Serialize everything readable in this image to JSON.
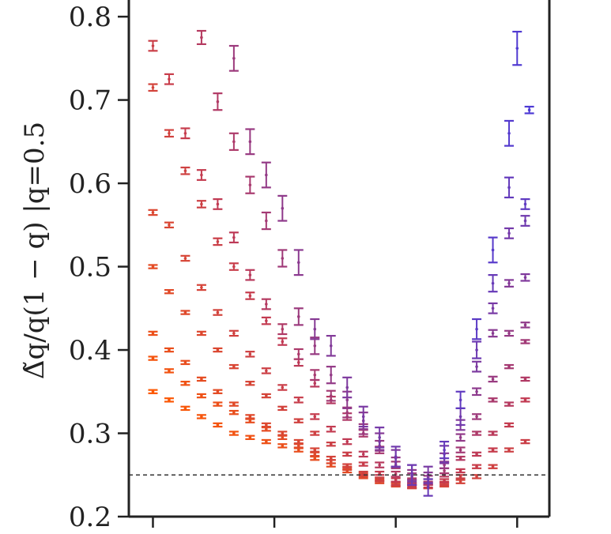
{
  "chart_data": {
    "type": "scatter",
    "title": "",
    "ylabel": "Δ̃q/q(1 − q) |q=0.5",
    "xlabel": "",
    "ylim": [
      0.2,
      0.82
    ],
    "xlim": [
      0,
      1
    ],
    "yticks": [
      0.2,
      0.3,
      0.4,
      0.5,
      0.6,
      0.7,
      0.8
    ],
    "ytick_labels": [
      "0.2",
      "0.3",
      "0.4",
      "0.5",
      "0.6",
      "0.7",
      "0.8"
    ],
    "xticks": [
      0.04,
      0.34,
      0.64,
      0.94
    ],
    "xtick_labels": [
      "",
      "",
      "",
      ""
    ],
    "reference_line": {
      "y": 0.25,
      "style": "dashed",
      "color": "#333333"
    },
    "grid": false,
    "legend": "none",
    "color_gradient": {
      "start": "#ff5a00",
      "mid": "#c23a52",
      "end": "#4a3ad8"
    },
    "series": [
      {
        "values": [
          [
            0.04,
            0.35,
            0.002
          ],
          [
            0.08,
            0.34,
            0.002
          ],
          [
            0.12,
            0.33,
            0.002
          ],
          [
            0.16,
            0.32,
            0.002
          ],
          [
            0.2,
            0.31,
            0.002
          ],
          [
            0.24,
            0.3,
            0.002
          ],
          [
            0.28,
            0.295,
            0.002
          ],
          [
            0.32,
            0.29,
            0.002
          ],
          [
            0.36,
            0.285,
            0.002
          ],
          [
            0.4,
            0.28,
            0.002
          ],
          [
            0.44,
            0.27,
            0.002
          ],
          [
            0.48,
            0.262,
            0.002
          ],
          [
            0.52,
            0.255,
            0.002
          ],
          [
            0.56,
            0.248,
            0.002
          ],
          [
            0.6,
            0.242,
            0.002
          ],
          [
            0.64,
            0.238,
            0.002
          ],
          [
            0.68,
            0.236,
            0.002
          ],
          [
            0.72,
            0.236,
            0.002
          ],
          [
            0.76,
            0.238,
            0.002
          ],
          [
            0.8,
            0.242,
            0.002
          ],
          [
            0.84,
            0.248,
            0.002
          ],
          [
            0.88,
            0.26,
            0.002
          ],
          [
            0.92,
            0.28,
            0.002
          ],
          [
            0.96,
            0.29,
            0.002
          ]
        ]
      },
      {
        "values": [
          [
            0.04,
            0.39,
            0.002
          ],
          [
            0.08,
            0.375,
            0.002
          ],
          [
            0.12,
            0.36,
            0.002
          ],
          [
            0.16,
            0.345,
            0.002
          ],
          [
            0.2,
            0.335,
            0.002
          ],
          [
            0.24,
            0.325,
            0.002
          ],
          [
            0.28,
            0.315,
            0.002
          ],
          [
            0.32,
            0.305,
            0.002
          ],
          [
            0.36,
            0.295,
            0.002
          ],
          [
            0.4,
            0.285,
            0.002
          ],
          [
            0.44,
            0.275,
            0.002
          ],
          [
            0.48,
            0.266,
            0.002
          ],
          [
            0.52,
            0.258,
            0.002
          ],
          [
            0.56,
            0.25,
            0.002
          ],
          [
            0.6,
            0.244,
            0.002
          ],
          [
            0.64,
            0.239,
            0.002
          ],
          [
            0.68,
            0.236,
            0.002
          ],
          [
            0.72,
            0.236,
            0.002
          ],
          [
            0.76,
            0.24,
            0.002
          ],
          [
            0.8,
            0.248,
            0.002
          ],
          [
            0.84,
            0.26,
            0.002
          ],
          [
            0.88,
            0.28,
            0.002
          ],
          [
            0.92,
            0.31,
            0.002
          ],
          [
            0.96,
            0.34,
            0.002
          ]
        ]
      },
      {
        "values": [
          [
            0.04,
            0.42,
            0.002
          ],
          [
            0.08,
            0.4,
            0.002
          ],
          [
            0.12,
            0.385,
            0.002
          ],
          [
            0.16,
            0.365,
            0.002
          ],
          [
            0.2,
            0.35,
            0.002
          ],
          [
            0.24,
            0.335,
            0.002
          ],
          [
            0.28,
            0.32,
            0.002
          ],
          [
            0.32,
            0.31,
            0.002
          ],
          [
            0.36,
            0.3,
            0.002
          ],
          [
            0.4,
            0.29,
            0.002
          ],
          [
            0.44,
            0.28,
            0.002
          ],
          [
            0.48,
            0.27,
            0.002
          ],
          [
            0.52,
            0.261,
            0.002
          ],
          [
            0.56,
            0.252,
            0.002
          ],
          [
            0.6,
            0.245,
            0.002
          ],
          [
            0.64,
            0.24,
            0.002
          ],
          [
            0.68,
            0.237,
            0.002
          ],
          [
            0.72,
            0.237,
            0.002
          ],
          [
            0.76,
            0.243,
            0.002
          ],
          [
            0.8,
            0.255,
            0.002
          ],
          [
            0.84,
            0.275,
            0.002
          ],
          [
            0.88,
            0.3,
            0.002
          ],
          [
            0.92,
            0.335,
            0.002
          ],
          [
            0.96,
            0.365,
            0.002
          ]
        ]
      },
      {
        "values": [
          [
            0.04,
            0.5,
            0.002
          ],
          [
            0.08,
            0.47,
            0.002
          ],
          [
            0.12,
            0.445,
            0.002
          ],
          [
            0.16,
            0.42,
            0.002
          ],
          [
            0.2,
            0.4,
            0.002
          ],
          [
            0.24,
            0.38,
            0.002
          ],
          [
            0.28,
            0.36,
            0.002
          ],
          [
            0.32,
            0.345,
            0.002
          ],
          [
            0.36,
            0.33,
            0.002
          ],
          [
            0.4,
            0.315,
            0.002
          ],
          [
            0.44,
            0.3,
            0.002
          ],
          [
            0.48,
            0.287,
            0.002
          ],
          [
            0.52,
            0.275,
            0.002
          ],
          [
            0.56,
            0.263,
            0.002
          ],
          [
            0.6,
            0.252,
            0.002
          ],
          [
            0.64,
            0.244,
            0.002
          ],
          [
            0.68,
            0.239,
            0.002
          ],
          [
            0.72,
            0.24,
            0.002
          ],
          [
            0.76,
            0.25,
            0.002
          ],
          [
            0.8,
            0.27,
            0.002
          ],
          [
            0.84,
            0.3,
            0.002
          ],
          [
            0.88,
            0.34,
            0.002
          ],
          [
            0.92,
            0.38,
            0.002
          ],
          [
            0.96,
            0.41,
            0.002
          ]
        ]
      },
      {
        "values": [
          [
            0.04,
            0.565,
            0.003
          ],
          [
            0.08,
            0.55,
            0.003
          ],
          [
            0.12,
            0.51,
            0.003
          ],
          [
            0.16,
            0.475,
            0.003
          ],
          [
            0.2,
            0.445,
            0.003
          ],
          [
            0.24,
            0.42,
            0.003
          ],
          [
            0.28,
            0.395,
            0.003
          ],
          [
            0.32,
            0.375,
            0.003
          ],
          [
            0.36,
            0.355,
            0.003
          ],
          [
            0.4,
            0.34,
            0.003
          ],
          [
            0.44,
            0.32,
            0.003
          ],
          [
            0.48,
            0.305,
            0.003
          ],
          [
            0.52,
            0.29,
            0.003
          ],
          [
            0.56,
            0.275,
            0.003
          ],
          [
            0.6,
            0.262,
            0.003
          ],
          [
            0.64,
            0.251,
            0.003
          ],
          [
            0.68,
            0.243,
            0.003
          ],
          [
            0.72,
            0.242,
            0.003
          ],
          [
            0.76,
            0.255,
            0.003
          ],
          [
            0.8,
            0.28,
            0.003
          ],
          [
            0.84,
            0.32,
            0.003
          ],
          [
            0.88,
            0.365,
            0.003
          ],
          [
            0.92,
            0.42,
            0.003
          ],
          [
            0.96,
            0.43,
            0.003
          ]
        ]
      },
      {
        "values": [
          [
            0.04,
            0.715,
            0.004
          ],
          [
            0.08,
            0.66,
            0.004
          ],
          [
            0.12,
            0.615,
            0.004
          ],
          [
            0.16,
            0.575,
            0.004
          ],
          [
            0.2,
            0.53,
            0.004
          ],
          [
            0.24,
            0.5,
            0.004
          ],
          [
            0.28,
            0.465,
            0.004
          ],
          [
            0.32,
            0.435,
            0.004
          ],
          [
            0.36,
            0.41,
            0.004
          ],
          [
            0.4,
            0.385,
            0.004
          ],
          [
            0.44,
            0.36,
            0.004
          ],
          [
            0.48,
            0.34,
            0.004
          ],
          [
            0.52,
            0.32,
            0.004
          ],
          [
            0.56,
            0.3,
            0.004
          ],
          [
            0.6,
            0.28,
            0.004
          ],
          [
            0.64,
            0.262,
            0.004
          ],
          [
            0.68,
            0.248,
            0.004
          ],
          [
            0.72,
            0.245,
            0.004
          ],
          [
            0.76,
            0.262,
            0.004
          ],
          [
            0.8,
            0.295,
            0.004
          ],
          [
            0.84,
            0.35,
            0.004
          ],
          [
            0.88,
            0.42,
            0.004
          ],
          [
            0.92,
            0.48,
            0.004
          ],
          [
            0.96,
            0.487,
            0.004
          ]
        ]
      },
      {
        "values": [
          [
            0.04,
            0.765,
            0.006
          ],
          [
            0.08,
            0.725,
            0.006
          ],
          [
            0.12,
            0.66,
            0.006
          ],
          [
            0.16,
            0.61,
            0.006
          ],
          [
            0.2,
            0.575,
            0.006
          ],
          [
            0.24,
            0.535,
            0.006
          ],
          [
            0.28,
            0.49,
            0.006
          ],
          [
            0.32,
            0.455,
            0.006
          ],
          [
            0.36,
            0.425,
            0.006
          ],
          [
            0.4,
            0.395,
            0.006
          ],
          [
            0.44,
            0.37,
            0.006
          ],
          [
            0.48,
            0.345,
            0.006
          ],
          [
            0.52,
            0.325,
            0.006
          ],
          [
            0.56,
            0.305,
            0.006
          ],
          [
            0.6,
            0.285,
            0.006
          ],
          [
            0.64,
            0.265,
            0.006
          ],
          [
            0.68,
            0.25,
            0.006
          ],
          [
            0.72,
            0.247,
            0.006
          ],
          [
            0.76,
            0.27,
            0.006
          ],
          [
            0.8,
            0.31,
            0.006
          ],
          [
            0.84,
            0.38,
            0.006
          ],
          [
            0.88,
            0.45,
            0.006
          ],
          [
            0.92,
            0.54,
            0.006
          ],
          [
            0.96,
            0.555,
            0.006
          ]
        ]
      },
      {
        "values": [
          [
            0.16,
            0.775,
            0.008
          ],
          [
            0.2,
            0.698,
            0.01
          ],
          [
            0.24,
            0.65,
            0.01
          ],
          [
            0.28,
            0.598,
            0.01
          ],
          [
            0.32,
            0.555,
            0.01
          ],
          [
            0.36,
            0.51,
            0.01
          ],
          [
            0.4,
            0.44,
            0.01
          ],
          [
            0.44,
            0.405,
            0.01
          ],
          [
            0.48,
            0.37,
            0.01
          ],
          [
            0.52,
            0.34,
            0.01
          ],
          [
            0.56,
            0.315,
            0.01
          ],
          [
            0.6,
            0.29,
            0.01
          ],
          [
            0.64,
            0.27,
            0.01
          ],
          [
            0.68,
            0.252,
            0.01
          ],
          [
            0.72,
            0.25,
            0.01
          ],
          [
            0.76,
            0.275,
            0.01
          ],
          [
            0.8,
            0.32,
            0.01
          ],
          [
            0.84,
            0.4,
            0.01
          ],
          [
            0.88,
            0.48,
            0.01
          ],
          [
            0.92,
            0.595,
            0.012
          ],
          [
            0.96,
            0.575,
            0.006
          ]
        ]
      },
      {
        "values": [
          [
            0.24,
            0.75,
            0.015
          ],
          [
            0.28,
            0.65,
            0.015
          ],
          [
            0.32,
            0.61,
            0.015
          ],
          [
            0.36,
            0.57,
            0.015
          ],
          [
            0.4,
            0.505,
            0.015
          ],
          [
            0.44,
            0.425,
            0.012
          ],
          [
            0.48,
            0.405,
            0.012
          ],
          [
            0.52,
            0.355,
            0.012
          ],
          [
            0.56,
            0.32,
            0.012
          ],
          [
            0.6,
            0.295,
            0.012
          ],
          [
            0.64,
            0.272,
            0.012
          ],
          [
            0.68,
            0.25,
            0.012
          ],
          [
            0.72,
            0.235,
            0.01
          ],
          [
            0.76,
            0.28,
            0.01
          ],
          [
            0.8,
            0.34,
            0.01
          ],
          [
            0.84,
            0.425,
            0.012
          ],
          [
            0.88,
            0.52,
            0.015
          ],
          [
            0.92,
            0.66,
            0.015
          ],
          [
            0.94,
            0.762,
            0.02
          ],
          [
            0.97,
            0.688,
            0.004
          ]
        ]
      }
    ]
  }
}
